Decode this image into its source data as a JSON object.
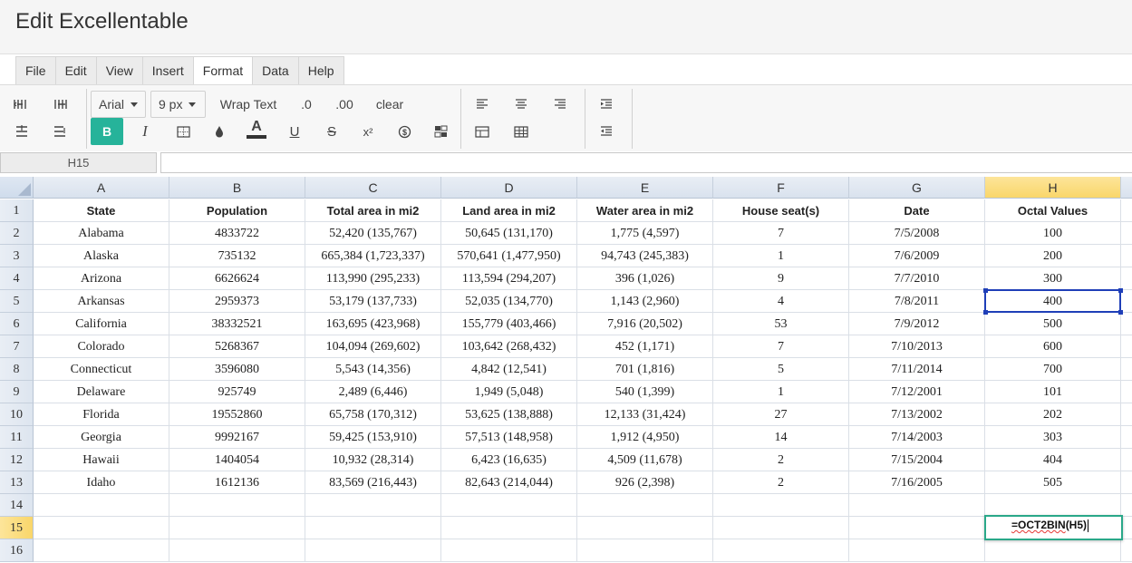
{
  "app": {
    "title": "Edit Excellentable"
  },
  "menu": {
    "items": [
      {
        "label": "File",
        "active": false
      },
      {
        "label": "Edit",
        "active": false
      },
      {
        "label": "View",
        "active": false
      },
      {
        "label": "Insert",
        "active": false
      },
      {
        "label": "Format",
        "active": true
      },
      {
        "label": "Data",
        "active": false
      },
      {
        "label": "Help",
        "active": false
      }
    ]
  },
  "toolbar": {
    "font_family": "Arial",
    "font_size": "9 px",
    "wrap_text": "Wrap Text",
    "decrease_decimal": ".0",
    "increase_decimal": ".00",
    "clear": "clear",
    "bold": "B",
    "italic": "I",
    "underline": "U",
    "strike": "S",
    "superscript": "x²",
    "text_color_letter": "A",
    "text_color": "#333333",
    "bold_active_color": "#26b39a"
  },
  "formula_bar": {
    "cell_ref": "H15",
    "value": ""
  },
  "sheet": {
    "columns": [
      "A",
      "B",
      "C",
      "D",
      "E",
      "F",
      "G",
      "H"
    ],
    "selected_column": "H",
    "selected_row": 15,
    "row_numbers": [
      1,
      2,
      3,
      4,
      5,
      6,
      7,
      8,
      9,
      10,
      11,
      12,
      13,
      14,
      15,
      16
    ],
    "rows": [
      [
        "State",
        "Population",
        "Total area in mi2",
        "Land area in mi2",
        "Water area in mi2",
        "House seat(s)",
        "Date",
        "Octal Values"
      ],
      [
        "Alabama",
        "4833722",
        "52,420 (135,767)",
        "50,645 (131,170)",
        "1,775 (4,597)",
        "7",
        "7/5/2008",
        "100"
      ],
      [
        "Alaska",
        "735132",
        "665,384 (1,723,337)",
        "570,641 (1,477,950)",
        "94,743 (245,383)",
        "1",
        "7/6/2009",
        "200"
      ],
      [
        "Arizona",
        "6626624",
        "113,990 (295,233)",
        "113,594 (294,207)",
        "396 (1,026)",
        "9",
        "7/7/2010",
        "300"
      ],
      [
        "Arkansas",
        "2959373",
        "53,179 (137,733)",
        "52,035 (134,770)",
        "1,143 (2,960)",
        "4",
        "7/8/2011",
        "400"
      ],
      [
        "California",
        "38332521",
        "163,695 (423,968)",
        "155,779 (403,466)",
        "7,916 (20,502)",
        "53",
        "7/9/2012",
        "500"
      ],
      [
        "Colorado",
        "5268367",
        "104,094 (269,602)",
        "103,642 (268,432)",
        "452 (1,171)",
        "7",
        "7/10/2013",
        "600"
      ],
      [
        "Connecticut",
        "3596080",
        "5,543 (14,356)",
        "4,842 (12,541)",
        "701 (1,816)",
        "5",
        "7/11/2014",
        "700"
      ],
      [
        "Delaware",
        "925749",
        "2,489 (6,446)",
        "1,949 (5,048)",
        "540 (1,399)",
        "1",
        "7/12/2001",
        "101"
      ],
      [
        "Florida",
        "19552860",
        "65,758 (170,312)",
        "53,625 (138,888)",
        "12,133 (31,424)",
        "27",
        "7/13/2002",
        "202"
      ],
      [
        "Georgia",
        "9992167",
        "59,425 (153,910)",
        "57,513 (148,958)",
        "1,912 (4,950)",
        "14",
        "7/14/2003",
        "303"
      ],
      [
        "Hawaii",
        "1404054",
        "10,932 (28,314)",
        "6,423 (16,635)",
        "4,509 (11,678)",
        "2",
        "7/15/2004",
        "404"
      ],
      [
        "Idaho",
        "1612136",
        "83,569 (216,443)",
        "82,643 (214,044)",
        "926 (2,398)",
        "2",
        "7/16/2005",
        "505"
      ],
      [
        "",
        "",
        "",
        "",
        "",
        "",
        "",
        ""
      ],
      [
        "",
        "",
        "",
        "",
        "",
        "",
        "",
        ""
      ],
      [
        "",
        "",
        "",
        "",
        "",
        "",
        "",
        ""
      ]
    ],
    "editing_cell": {
      "ref": "H15",
      "formula_fn": "=OCT2BIN",
      "formula_arg": "(H5)"
    },
    "referenced_cell": "H5"
  }
}
